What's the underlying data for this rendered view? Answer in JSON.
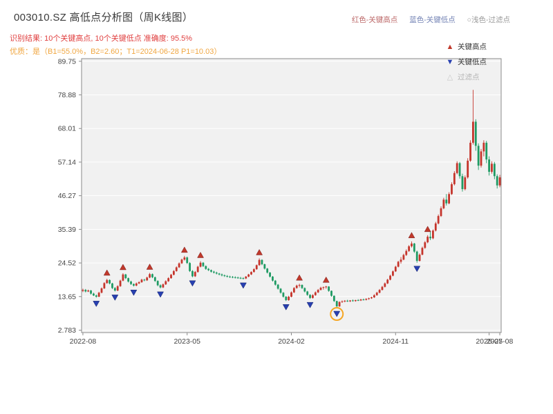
{
  "header": {
    "title": "003010.SZ 高低点分析图（周K线图）",
    "top_legend": [
      {
        "label": "红色-关键高点",
        "color": "#bc6868"
      },
      {
        "label": "蓝色-关键低点",
        "color": "#7282b4"
      },
      {
        "label": "○浅色-过滤点",
        "color": "#9a9a9a"
      }
    ],
    "result_line": "识别结果: 10个关键高点, 10个关键低点  准确度: 95.5%",
    "quality_line": "优质：是（B1=55.0%，B2=2.60；T1=2024-06-28 P1=10.03）"
  },
  "chart_data": {
    "type": "candlestick",
    "title": "003010.SZ 高低点分析图（周K线图）",
    "symbol": "003010.SZ",
    "period": "周K线",
    "ylim": [
      2.0,
      90.6
    ],
    "y_ticks": [
      2.783,
      13.65,
      24.52,
      35.39,
      46.27,
      57.14,
      68.01,
      78.88,
      89.75
    ],
    "y_tick_labels": [
      "2.783",
      "13.65",
      "24.52",
      "35.39",
      "46.27",
      "57.14",
      "68.01",
      "78.88",
      "89.75"
    ],
    "x_ticks": [
      {
        "index": 0,
        "label": "2022-08"
      },
      {
        "index": 39,
        "label": "2023-05"
      },
      {
        "index": 78,
        "label": "2024-02"
      },
      {
        "index": 117,
        "label": "2024-11"
      },
      {
        "index": 152,
        "label": "2025-07"
      },
      {
        "index": 156,
        "label": "2025-08"
      }
    ],
    "legend": [
      {
        "label": "关键高点",
        "marker": "triangle-up",
        "color": "#c0392b"
      },
      {
        "label": "关键低点",
        "marker": "triangle-down",
        "color": "#2840b0"
      },
      {
        "label": "过滤点",
        "marker": "triangle-up-outline",
        "color": "#c8c8c8"
      }
    ],
    "colors": {
      "up": "#c5342b",
      "down": "#1e9a63",
      "plot_bg": "#f1f1f1",
      "grid": "#ffffff",
      "axis": "#8a8a8a",
      "highlight_circle": "#f5a623"
    },
    "candles": [
      [
        15.5,
        16.2,
        15.1,
        15.8
      ],
      [
        15.8,
        16.1,
        15.0,
        15.3
      ],
      [
        15.3,
        15.9,
        15.1,
        15.6
      ],
      [
        15.6,
        15.8,
        14.3,
        14.6
      ],
      [
        14.6,
        14.9,
        13.8,
        14.0
      ],
      [
        14.0,
        14.3,
        13.3,
        13.6
      ],
      [
        13.6,
        15.2,
        13.5,
        14.9
      ],
      [
        14.9,
        16.6,
        14.7,
        16.3
      ],
      [
        16.3,
        18.3,
        16.1,
        18.0
      ],
      [
        18.0,
        19.4,
        17.8,
        19.0
      ],
      [
        19.0,
        19.2,
        17.6,
        17.9
      ],
      [
        17.9,
        18.1,
        16.1,
        16.4
      ],
      [
        16.4,
        16.7,
        15.3,
        15.6
      ],
      [
        15.6,
        17.3,
        15.4,
        17.0
      ],
      [
        17.0,
        19.1,
        16.8,
        18.8
      ],
      [
        18.8,
        21.2,
        18.6,
        20.8
      ],
      [
        20.8,
        21.0,
        19.3,
        19.6
      ],
      [
        19.6,
        19.8,
        18.2,
        18.5
      ],
      [
        18.5,
        18.8,
        17.4,
        17.7
      ],
      [
        17.7,
        17.9,
        16.9,
        17.2
      ],
      [
        17.2,
        18.2,
        17.0,
        17.9
      ],
      [
        17.9,
        18.6,
        17.7,
        18.3
      ],
      [
        18.3,
        19.4,
        18.1,
        19.1
      ],
      [
        19.1,
        19.4,
        18.6,
        18.9
      ],
      [
        18.9,
        20.1,
        18.7,
        19.8
      ],
      [
        19.8,
        21.3,
        19.6,
        20.9
      ],
      [
        20.9,
        21.1,
        19.6,
        19.9
      ],
      [
        19.9,
        20.1,
        18.4,
        18.7
      ],
      [
        18.7,
        18.9,
        17.0,
        17.3
      ],
      [
        17.3,
        17.6,
        16.3,
        16.6
      ],
      [
        16.6,
        17.9,
        16.4,
        17.6
      ],
      [
        17.6,
        18.9,
        17.4,
        18.6
      ],
      [
        18.6,
        19.9,
        18.4,
        19.6
      ],
      [
        19.6,
        21.0,
        19.4,
        20.7
      ],
      [
        20.7,
        22.2,
        20.5,
        21.9
      ],
      [
        21.9,
        23.4,
        21.7,
        23.1
      ],
      [
        23.1,
        24.7,
        22.9,
        24.4
      ],
      [
        24.4,
        25.9,
        24.2,
        25.6
      ],
      [
        25.6,
        26.8,
        25.3,
        26.3
      ],
      [
        26.3,
        26.6,
        24.2,
        24.5
      ],
      [
        24.5,
        24.8,
        21.6,
        21.9
      ],
      [
        21.9,
        22.2,
        19.9,
        20.2
      ],
      [
        20.2,
        21.9,
        20.0,
        21.6
      ],
      [
        21.6,
        23.6,
        21.4,
        23.3
      ],
      [
        23.3,
        25.1,
        23.1,
        24.6
      ],
      [
        24.6,
        24.8,
        23.2,
        23.5
      ],
      [
        23.5,
        23.7,
        22.3,
        22.6
      ],
      [
        22.6,
        22.9,
        21.9,
        22.2
      ],
      [
        22.2,
        22.4,
        21.4,
        21.7
      ],
      [
        21.7,
        22.0,
        21.1,
        21.4
      ],
      [
        21.4,
        21.7,
        20.8,
        21.1
      ],
      [
        21.1,
        21.3,
        20.5,
        20.8
      ],
      [
        20.8,
        21.1,
        20.2,
        20.5
      ],
      [
        20.5,
        20.8,
        20.0,
        20.3
      ],
      [
        20.3,
        20.6,
        19.8,
        20.1
      ],
      [
        20.1,
        20.4,
        19.7,
        20.0
      ],
      [
        20.0,
        20.3,
        19.6,
        19.9
      ],
      [
        19.9,
        20.2,
        19.5,
        19.8
      ],
      [
        19.8,
        20.1,
        19.4,
        19.7
      ],
      [
        19.7,
        20.0,
        19.3,
        19.6
      ],
      [
        19.6,
        19.9,
        19.2,
        19.5
      ],
      [
        19.5,
        20.3,
        19.3,
        20.1
      ],
      [
        20.1,
        21.0,
        19.9,
        20.8
      ],
      [
        20.8,
        21.8,
        20.6,
        21.6
      ],
      [
        21.6,
        22.8,
        21.4,
        22.5
      ],
      [
        22.5,
        24.0,
        22.3,
        23.8
      ],
      [
        23.8,
        26.0,
        23.6,
        25.5
      ],
      [
        25.5,
        25.7,
        23.8,
        24.1
      ],
      [
        24.1,
        24.3,
        22.4,
        22.7
      ],
      [
        22.7,
        22.9,
        21.1,
        21.4
      ],
      [
        21.4,
        21.6,
        19.8,
        20.1
      ],
      [
        20.1,
        20.3,
        18.5,
        18.8
      ],
      [
        18.8,
        19.0,
        17.2,
        17.5
      ],
      [
        17.5,
        17.7,
        15.9,
        16.2
      ],
      [
        16.2,
        16.4,
        14.6,
        14.9
      ],
      [
        14.9,
        15.1,
        13.3,
        13.6
      ],
      [
        13.6,
        13.8,
        12.2,
        12.5
      ],
      [
        12.5,
        13.9,
        12.3,
        13.6
      ],
      [
        13.6,
        15.3,
        13.4,
        15.0
      ],
      [
        15.0,
        16.7,
        14.8,
        16.4
      ],
      [
        16.4,
        17.5,
        16.2,
        17.2
      ],
      [
        17.2,
        17.8,
        16.6,
        17.4
      ],
      [
        17.4,
        17.6,
        16.1,
        16.4
      ],
      [
        16.4,
        16.6,
        15.0,
        15.3
      ],
      [
        15.3,
        15.5,
        13.9,
        14.2
      ],
      [
        14.2,
        14.4,
        12.9,
        13.2
      ],
      [
        13.2,
        14.4,
        13.0,
        14.1
      ],
      [
        14.1,
        15.3,
        13.9,
        15.0
      ],
      [
        15.0,
        16.1,
        14.8,
        15.8
      ],
      [
        15.8,
        16.8,
        15.6,
        16.5
      ],
      [
        16.5,
        16.9,
        15.9,
        16.7
      ],
      [
        16.7,
        17.1,
        16.2,
        16.9
      ],
      [
        16.9,
        17.0,
        15.2,
        15.5
      ],
      [
        15.5,
        15.6,
        13.6,
        13.9
      ],
      [
        13.9,
        14.0,
        11.9,
        12.2
      ],
      [
        12.2,
        12.3,
        10.03,
        10.5
      ],
      [
        10.5,
        12.1,
        10.3,
        11.9
      ],
      [
        11.9,
        12.4,
        11.6,
        12.1
      ],
      [
        12.1,
        12.5,
        11.8,
        12.3
      ],
      [
        12.3,
        12.6,
        11.9,
        12.1
      ],
      [
        12.1,
        12.5,
        11.9,
        12.4
      ],
      [
        12.4,
        12.7,
        12.0,
        12.2
      ],
      [
        12.2,
        12.6,
        12.0,
        12.5
      ],
      [
        12.5,
        12.8,
        12.2,
        12.4
      ],
      [
        12.4,
        12.9,
        12.2,
        12.7
      ],
      [
        12.7,
        13.0,
        12.4,
        12.6
      ],
      [
        12.6,
        13.1,
        12.4,
        12.9
      ],
      [
        12.9,
        13.3,
        12.6,
        13.1
      ],
      [
        13.1,
        13.6,
        12.9,
        13.4
      ],
      [
        13.4,
        14.4,
        13.2,
        14.1
      ],
      [
        14.1,
        15.2,
        13.9,
        14.9
      ],
      [
        14.9,
        16.1,
        14.7,
        15.8
      ],
      [
        15.8,
        17.1,
        15.6,
        16.8
      ],
      [
        16.8,
        18.2,
        16.6,
        17.9
      ],
      [
        17.9,
        19.4,
        17.7,
        19.1
      ],
      [
        19.1,
        20.7,
        18.9,
        20.4
      ],
      [
        20.4,
        22.1,
        20.2,
        21.8
      ],
      [
        21.8,
        23.6,
        21.6,
        23.3
      ],
      [
        23.3,
        25.2,
        23.1,
        24.9
      ],
      [
        24.9,
        26.4,
        24.3,
        25.6
      ],
      [
        25.6,
        27.5,
        25.4,
        27.1
      ],
      [
        27.1,
        28.9,
        26.8,
        28.4
      ],
      [
        28.4,
        30.3,
        28.1,
        29.9
      ],
      [
        29.9,
        31.5,
        29.5,
        30.8
      ],
      [
        30.8,
        31.0,
        27.8,
        28.2
      ],
      [
        28.2,
        28.5,
        24.6,
        25.2
      ],
      [
        25.2,
        27.6,
        25.0,
        27.2
      ],
      [
        27.2,
        29.8,
        27.0,
        29.4
      ],
      [
        29.4,
        31.6,
        29.1,
        31.2
      ],
      [
        31.2,
        33.5,
        30.9,
        33.0
      ],
      [
        33.0,
        34.8,
        31.9,
        32.5
      ],
      [
        32.5,
        35.4,
        32.2,
        35.0
      ],
      [
        35.0,
        37.8,
        34.7,
        37.3
      ],
      [
        37.3,
        40.2,
        37.0,
        39.7
      ],
      [
        39.7,
        42.8,
        39.4,
        42.2
      ],
      [
        42.2,
        45.6,
        41.9,
        45.0
      ],
      [
        45.0,
        46.8,
        43.1,
        43.8
      ],
      [
        43.8,
        47.4,
        43.5,
        46.8
      ],
      [
        46.8,
        50.6,
        46.5,
        50.0
      ],
      [
        50.0,
        54.2,
        49.6,
        53.6
      ],
      [
        53.6,
        57.4,
        53.2,
        56.8
      ],
      [
        56.8,
        57.2,
        51.8,
        52.6
      ],
      [
        52.6,
        53.4,
        47.6,
        48.4
      ],
      [
        48.4,
        52.8,
        48.0,
        52.2
      ],
      [
        52.2,
        58.4,
        51.8,
        57.6
      ],
      [
        57.6,
        64.2,
        57.2,
        63.4
      ],
      [
        63.4,
        80.5,
        62.8,
        70.2
      ],
      [
        70.2,
        71.0,
        60.8,
        62.4
      ],
      [
        62.4,
        63.2,
        54.6,
        56.0
      ],
      [
        56.0,
        61.4,
        55.4,
        60.6
      ],
      [
        60.6,
        64.2,
        59.0,
        63.4
      ],
      [
        63.4,
        64.0,
        56.8,
        58.0
      ],
      [
        58.0,
        59.0,
        52.8,
        54.0
      ],
      [
        54.0,
        57.4,
        53.4,
        56.6
      ],
      [
        56.6,
        57.2,
        51.6,
        52.6
      ],
      [
        52.6,
        53.2,
        48.6,
        49.6
      ],
      [
        49.6,
        53.0,
        49.0,
        52.2
      ]
    ],
    "key_high_indices": [
      9,
      15,
      25,
      38,
      44,
      66,
      81,
      91,
      123,
      129
    ],
    "key_low_indices": [
      5,
      12,
      19,
      29,
      41,
      60,
      76,
      85,
      95,
      125
    ],
    "highlight_circle_indices": [
      95
    ]
  }
}
